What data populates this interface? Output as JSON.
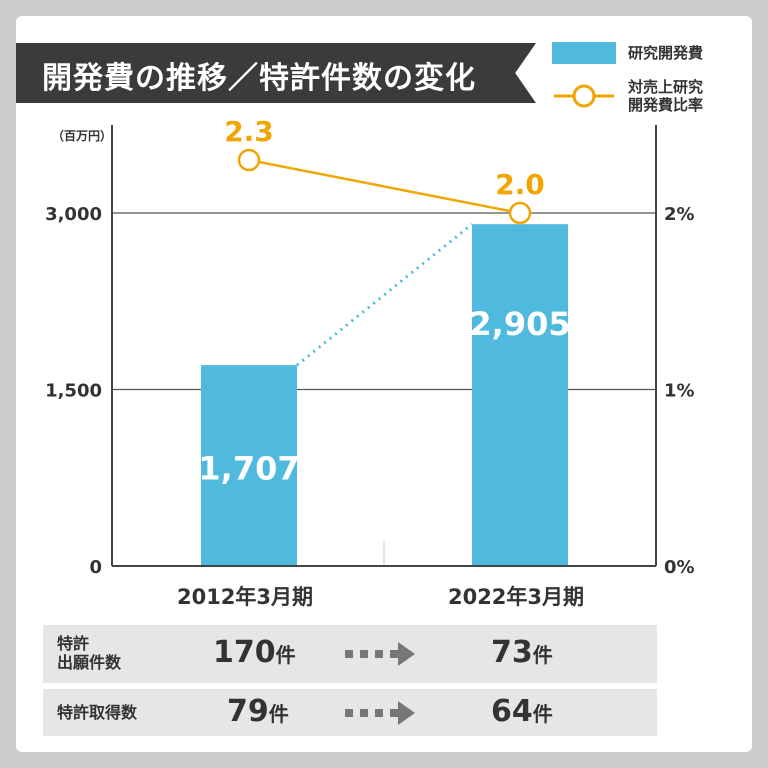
{
  "title": "開発費の推移／特許件数の変化",
  "legend": {
    "bar": "研究開発費",
    "line_1": "対売上研究",
    "line_2": "開発費比率"
  },
  "colors": {
    "bar": "#4fbadd",
    "line": "#f0a500",
    "label": "#f0a500"
  },
  "chart_data": {
    "type": "bar",
    "title": "開発費の推移／特許件数の変化",
    "ylabel": "（百万円）",
    "categories": [
      "2012年3月期",
      "2022年3月期"
    ],
    "ylim": [
      0,
      3000
    ],
    "y_ticks": [
      "0",
      "1,500",
      "3,000"
    ],
    "y_tick_values": [
      0,
      1500,
      3000
    ],
    "y2lim": [
      0,
      2
    ],
    "y2_ticks": [
      "0%",
      "1%",
      "2%"
    ],
    "y2_tick_values": [
      0,
      1,
      2
    ],
    "series": [
      {
        "name": "研究開発費",
        "type": "bar",
        "values": [
          1707,
          2905
        ],
        "labels": [
          "1,707",
          "2,905"
        ]
      },
      {
        "name": "対売上研究開発費比率",
        "type": "line",
        "values": [
          2.3,
          2.0
        ],
        "labels": [
          "2.3",
          "2.0"
        ]
      }
    ]
  },
  "table": [
    {
      "label_1": "特許",
      "label_2": "出願件数",
      "from": "170",
      "to": "73",
      "unit": "件"
    },
    {
      "label_1": "特許取得数",
      "label_2": "",
      "from": "79",
      "to": "64",
      "unit": "件"
    }
  ]
}
